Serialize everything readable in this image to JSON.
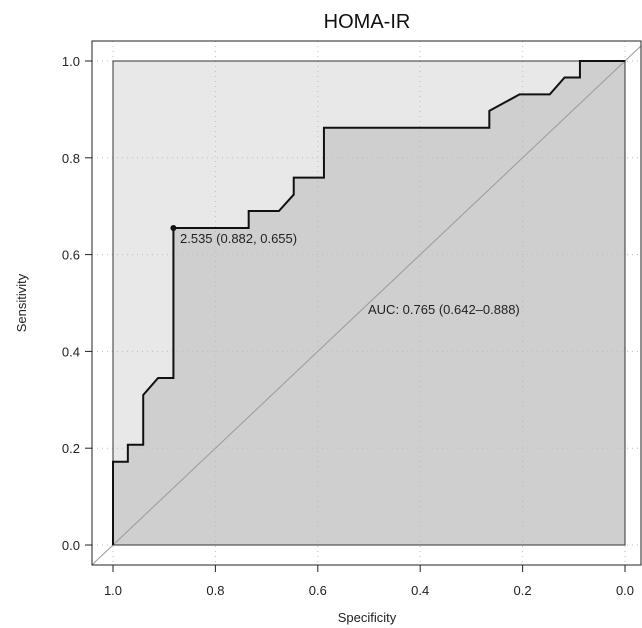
{
  "chart_data": {
    "type": "line",
    "title": "HOMA-IR",
    "xlabel": "Specificity",
    "ylabel": "Sensitivity",
    "xlim": [
      1.0,
      0.0
    ],
    "ylim": [
      0.0,
      1.0
    ],
    "x_reversed": true,
    "grid": true,
    "xticks": [
      "1.0",
      "0.8",
      "0.6",
      "0.4",
      "0.2",
      "0.0"
    ],
    "yticks": [
      "0.0",
      "0.2",
      "0.4",
      "0.6",
      "0.8",
      "1.0"
    ],
    "series": [
      {
        "points": [
          {
            "specificity": 1.0,
            "sensitivity": 0.0
          },
          {
            "specificity": 1.0,
            "sensitivity": 0.172
          },
          {
            "specificity": 0.971,
            "sensitivity": 0.172
          },
          {
            "specificity": 0.971,
            "sensitivity": 0.207
          },
          {
            "specificity": 0.941,
            "sensitivity": 0.207
          },
          {
            "specificity": 0.941,
            "sensitivity": 0.31
          },
          {
            "specificity": 0.912,
            "sensitivity": 0.345
          },
          {
            "specificity": 0.882,
            "sensitivity": 0.345
          },
          {
            "specificity": 0.882,
            "sensitivity": 0.655
          },
          {
            "specificity": 0.735,
            "sensitivity": 0.655
          },
          {
            "specificity": 0.735,
            "sensitivity": 0.69
          },
          {
            "specificity": 0.676,
            "sensitivity": 0.69
          },
          {
            "specificity": 0.647,
            "sensitivity": 0.724
          },
          {
            "specificity": 0.647,
            "sensitivity": 0.759
          },
          {
            "specificity": 0.588,
            "sensitivity": 0.759
          },
          {
            "specificity": 0.588,
            "sensitivity": 0.862
          },
          {
            "specificity": 0.265,
            "sensitivity": 0.862
          },
          {
            "specificity": 0.265,
            "sensitivity": 0.897
          },
          {
            "specificity": 0.206,
            "sensitivity": 0.931
          },
          {
            "specificity": 0.147,
            "sensitivity": 0.931
          },
          {
            "specificity": 0.118,
            "sensitivity": 0.966
          },
          {
            "specificity": 0.088,
            "sensitivity": 0.966
          },
          {
            "specificity": 0.088,
            "sensitivity": 1.0
          },
          {
            "specificity": 0.0,
            "sensitivity": 1.0
          }
        ]
      }
    ],
    "threshold_point": {
      "specificity": 0.882,
      "sensitivity": 0.655,
      "label": "2.535 (0.882, 0.655)"
    },
    "auc_label": "AUC: 0.765 (0.642–0.888)",
    "colors": {
      "auc_fill": "#cfcfcf",
      "ci_fill": "#e8e8e8",
      "curve": "#111111",
      "diagonal": "#9a9a9a",
      "grid": "#bdbdbd"
    }
  }
}
